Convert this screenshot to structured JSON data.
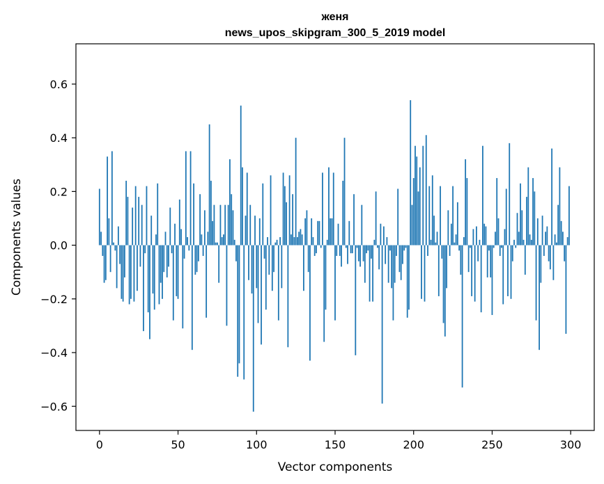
{
  "chart_data": {
    "type": "bar",
    "title_line1": "женя",
    "title_line2": "news_upos_skipgram_300_5_2019 model",
    "xlabel": "Vector components",
    "ylabel": "Components values",
    "xlim": [
      -15,
      315
    ],
    "ylim": [
      -0.69,
      0.75
    ],
    "x_ticks": [
      0,
      50,
      100,
      150,
      200,
      250,
      300
    ],
    "y_ticks": [
      -0.6,
      -0.4,
      -0.2,
      0.0,
      0.2,
      0.4,
      0.6
    ],
    "y_tick_labels": [
      "−0.6",
      "−0.4",
      "−0.2",
      "0.0",
      "0.2",
      "0.4",
      "0.6"
    ],
    "bar_color": "#1f77b4",
    "grid": false,
    "values": [
      0.21,
      0.05,
      -0.04,
      -0.14,
      -0.13,
      0.33,
      0.1,
      -0.1,
      0.35,
      0.01,
      -0.02,
      -0.16,
      0.07,
      -0.07,
      -0.2,
      -0.21,
      -0.12,
      0.24,
      0.18,
      -0.22,
      -0.2,
      0.14,
      -0.21,
      0.22,
      -0.17,
      0.18,
      -0.08,
      0.15,
      -0.32,
      -0.03,
      0.22,
      -0.25,
      -0.35,
      0.11,
      -0.18,
      -0.24,
      0.04,
      0.23,
      -0.22,
      -0.14,
      -0.2,
      -0.1,
      0.05,
      -0.12,
      -0.08,
      0.14,
      -0.03,
      -0.28,
      0.08,
      -0.19,
      -0.2,
      0.17,
      0.06,
      -0.31,
      -0.05,
      0.35,
      0.03,
      -0.02,
      0.35,
      -0.39,
      0.23,
      -0.11,
      -0.1,
      -0.06,
      0.19,
      0.04,
      -0.04,
      0.13,
      -0.27,
      0.05,
      0.45,
      0.24,
      0.09,
      0.15,
      0.01,
      0.01,
      -0.14,
      0.15,
      0.03,
      0.04,
      0.15,
      -0.3,
      0.15,
      0.32,
      0.19,
      0.13,
      0.02,
      -0.06,
      -0.49,
      -0.44,
      0.52,
      0.29,
      -0.5,
      0.11,
      0.27,
      -0.13,
      0.15,
      -0.18,
      -0.62,
      0.11,
      -0.16,
      -0.29,
      0.1,
      -0.37,
      0.23,
      -0.05,
      -0.24,
      0.03,
      -0.11,
      0.26,
      -0.17,
      -0.1,
      0.01,
      0.02,
      -0.28,
      0.03,
      -0.16,
      0.27,
      0.22,
      0.16,
      -0.38,
      0.26,
      0.04,
      0.19,
      0.03,
      0.4,
      0.03,
      0.05,
      0.06,
      0.04,
      -0.17,
      0.1,
      0.13,
      -0.1,
      -0.43,
      0.1,
      0.03,
      -0.04,
      -0.03,
      0.09,
      0.09,
      -0.01,
      0.27,
      -0.36,
      -0.24,
      0.02,
      0.29,
      0.1,
      0.1,
      0.27,
      -0.28,
      -0.04,
      0.08,
      -0.04,
      -0.08,
      0.24,
      0.4,
      -0.01,
      -0.07,
      0.09,
      -0.03,
      -0.03,
      0.19,
      -0.41,
      -0.01,
      -0.06,
      -0.08,
      0.15,
      -0.06,
      -0.14,
      -0.03,
      -0.02,
      -0.21,
      -0.05,
      -0.21,
      0.02,
      0.2,
      -0.01,
      -0.09,
      0.08,
      -0.59,
      0.07,
      -0.07,
      0.03,
      -0.14,
      -0.02,
      -0.16,
      -0.28,
      -0.14,
      -0.04,
      0.21,
      -0.1,
      -0.13,
      -0.07,
      -0.02,
      -0.01,
      -0.27,
      -0.24,
      0.54,
      0.15,
      0.25,
      0.37,
      0.33,
      0.2,
      0.29,
      -0.2,
      0.37,
      -0.21,
      0.41,
      -0.04,
      0.22,
      0.02,
      0.26,
      0.11,
      0.01,
      0.05,
      -0.19,
      0.22,
      -0.05,
      -0.29,
      -0.34,
      -0.16,
      0.13,
      -0.04,
      0.08,
      0.22,
      0.01,
      0.04,
      0.16,
      -0.02,
      -0.11,
      -0.53,
      0.03,
      0.32,
      0.25,
      -0.1,
      -0.01,
      -0.19,
      0.06,
      -0.21,
      0.07,
      -0.06,
      0.02,
      -0.25,
      0.37,
      0.08,
      0.07,
      -0.12,
      -0.02,
      -0.12,
      -0.26,
      -0.01,
      0.05,
      0.25,
      0.1,
      -0.04,
      -0.01,
      -0.22,
      0.06,
      0.21,
      -0.19,
      0.38,
      -0.2,
      -0.06,
      0.02,
      -0.01,
      0.12,
      0.05,
      0.23,
      0.13,
      0.02,
      -0.11,
      0.18,
      0.29,
      0.04,
      0.02,
      0.25,
      0.2,
      -0.28,
      0.1,
      -0.39,
      -0.14,
      0.11,
      -0.04,
      0.05,
      0.07,
      -0.06,
      -0.09,
      0.36,
      -0.13,
      0.04,
      0.01,
      0.15,
      0.29,
      0.09,
      0.05,
      -0.06,
      -0.33,
      0.03,
      0.22
    ]
  }
}
